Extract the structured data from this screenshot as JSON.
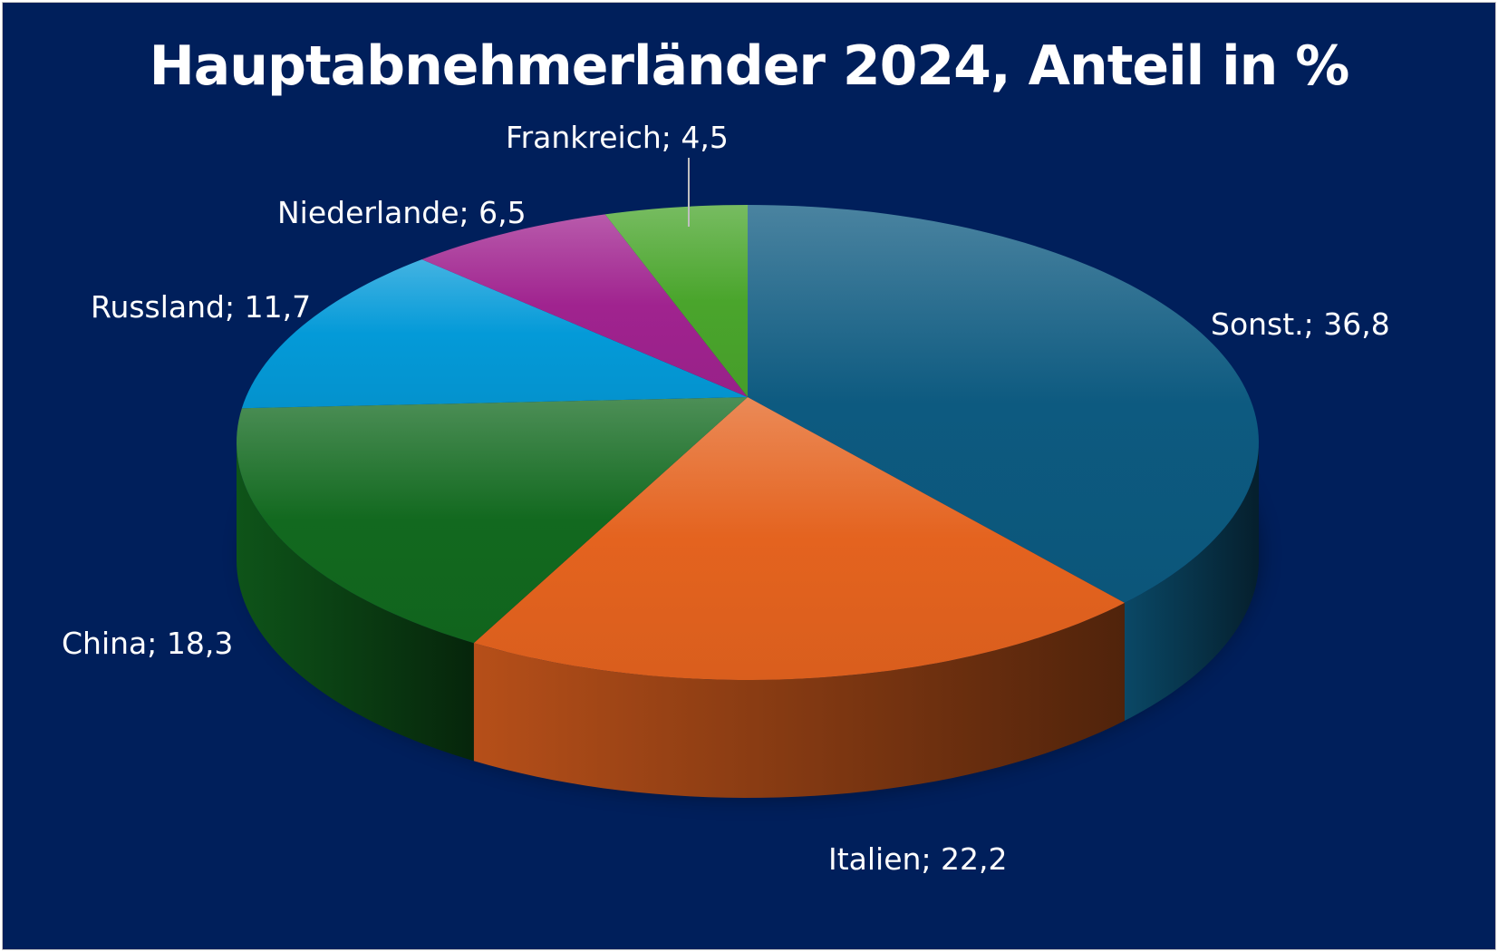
{
  "chart_data": {
    "type": "pie",
    "title": "Hauptabnehmerländer 2024, Anteil in %",
    "categories": [
      "Sonst.",
      "Italien",
      "China",
      "Russland",
      "Niederlande",
      "Frankreich"
    ],
    "values": [
      36.8,
      22.2,
      18.3,
      11.7,
      6.5,
      4.5
    ],
    "labels": [
      "Sonst.; 36,8",
      "Italien; 22,2",
      "China; 18,3",
      "Russland; 11,7",
      "Niederlande; 6,5",
      "Frankreich; 4,5"
    ],
    "colors": [
      "#0d5a80",
      "#e4631f",
      "#12691f",
      "#049ad8",
      "#a0238f",
      "#4aa52c"
    ],
    "style": "3d-pie",
    "legend": "none"
  }
}
